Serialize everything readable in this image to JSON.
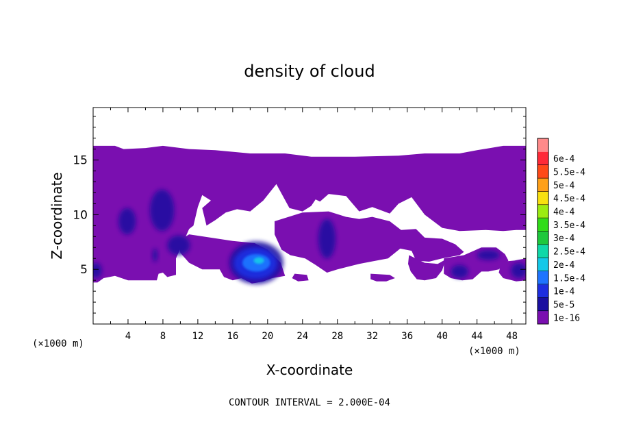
{
  "chart_data": {
    "type": "heatmap",
    "title": "density of cloud",
    "xlabel": "X-coordinate",
    "ylabel": "Z-coordinate",
    "x_unit": "(×1000 m)",
    "footer": "CONTOUR INTERVAL = 2.000E-04",
    "xlim": [
      0,
      49.6
    ],
    "ylim": [
      0,
      19.8
    ],
    "x_ticks": [
      4,
      8,
      12,
      16,
      20,
      24,
      28,
      32,
      36,
      40,
      44,
      48
    ],
    "x_tick_labels": [
      "4",
      "8",
      "12",
      "16",
      "20",
      "24",
      "28",
      "32",
      "36",
      "40",
      "44",
      "48"
    ],
    "y_ticks": [
      5,
      10,
      15
    ],
    "y_tick_labels": [
      "5",
      "10",
      "15"
    ],
    "colorbar": {
      "levels": [
        "1e-16",
        "5e-5",
        "1e-4",
        "1.5e-4",
        "2e-4",
        "2.5e-4",
        "3e-4",
        "3.5e-4",
        "4e-4",
        "4.5e-4",
        "5e-4",
        "5.5e-4",
        "6e-4"
      ],
      "colors": [
        "#7a0fb0",
        "#1a0fa0",
        "#1e2ee0",
        "#1f74ff",
        "#14c8e8",
        "#10d8a8",
        "#1ec83c",
        "#30dc18",
        "#9cec12",
        "#f8e010",
        "#ffa018",
        "#ff4a18",
        "#ff2a38",
        "#ff8a8a"
      ]
    },
    "cloud_layer": {
      "main_z_range": [
        4,
        16.3
      ],
      "region": [
        [
          0,
          16.3
        ],
        [
          2.5,
          16.3
        ],
        [
          3.5,
          16.0
        ],
        [
          6,
          16.1
        ],
        [
          8,
          16.3
        ],
        [
          11,
          16.0
        ],
        [
          14,
          15.9
        ],
        [
          18,
          15.6
        ],
        [
          22,
          15.6
        ],
        [
          25,
          15.3
        ],
        [
          30,
          15.3
        ],
        [
          35,
          15.4
        ],
        [
          38,
          15.6
        ],
        [
          42,
          15.6
        ],
        [
          44,
          15.9
        ],
        [
          45.5,
          16.1
        ],
        [
          47,
          16.3
        ],
        [
          49.6,
          16.3
        ],
        [
          49.6,
          8.6
        ],
        [
          48.5,
          8.6
        ],
        [
          47,
          8.5
        ],
        [
          45,
          8.6
        ],
        [
          42,
          8.5
        ],
        [
          40,
          8.8
        ],
        [
          38,
          10.0
        ],
        [
          36.5,
          11.6
        ],
        [
          35,
          11.0
        ],
        [
          34,
          10.1
        ],
        [
          32,
          10.7
        ],
        [
          30.5,
          10.3
        ],
        [
          29,
          11.7
        ],
        [
          27,
          11.9
        ],
        [
          26,
          11.2
        ],
        [
          25.5,
          11.4
        ],
        [
          25,
          10.8
        ],
        [
          24,
          10.3
        ],
        [
          22.5,
          10.6
        ],
        [
          21,
          12.8
        ],
        [
          19.5,
          11.3
        ],
        [
          18,
          10.3
        ],
        [
          16.5,
          10.5
        ],
        [
          15.2,
          10.2
        ],
        [
          14,
          9.5
        ],
        [
          13,
          9.0
        ],
        [
          12.5,
          10.6
        ],
        [
          13.5,
          11.3
        ],
        [
          12.5,
          11.8
        ],
        [
          12,
          10.7
        ],
        [
          11.5,
          9.0
        ],
        [
          11,
          8.7
        ],
        [
          9.5,
          6.0
        ],
        [
          9.5,
          4.5
        ],
        [
          8.5,
          4.3
        ],
        [
          8,
          4.7
        ],
        [
          7.5,
          4.6
        ],
        [
          7.3,
          4.0
        ],
        [
          4,
          4.0
        ],
        [
          2.5,
          4.4
        ],
        [
          1.2,
          4.2
        ],
        [
          0.5,
          3.8
        ],
        [
          0,
          3.8
        ]
      ],
      "lower_patches": [
        [
          [
            11,
            8.2
          ],
          [
            16,
            7.6
          ],
          [
            18.5,
            7.4
          ],
          [
            20,
            6.8
          ],
          [
            21.5,
            5.6
          ],
          [
            22,
            4.4
          ],
          [
            20.5,
            4.2
          ],
          [
            19.5,
            3.9
          ],
          [
            18.2,
            3.7
          ],
          [
            17,
            4.2
          ],
          [
            16,
            4.0
          ],
          [
            15,
            4.3
          ],
          [
            14.5,
            5.0
          ],
          [
            12.5,
            5.0
          ],
          [
            11,
            5.6
          ],
          [
            10,
            6.5
          ],
          [
            9.8,
            7.6
          ]
        ],
        [
          [
            20.8,
            9.4
          ],
          [
            24,
            10.2
          ],
          [
            27,
            10.3
          ],
          [
            29,
            9.8
          ],
          [
            30.5,
            9.6
          ],
          [
            32,
            9.8
          ],
          [
            34,
            9.4
          ],
          [
            35.3,
            8.6
          ],
          [
            37,
            8.7
          ],
          [
            38,
            7.9
          ],
          [
            40,
            7.8
          ],
          [
            41.5,
            7.3
          ],
          [
            42.5,
            6.6
          ],
          [
            42,
            6.3
          ],
          [
            40,
            6.0
          ],
          [
            38.5,
            5.7
          ],
          [
            37,
            5.8
          ],
          [
            36.5,
            6.7
          ],
          [
            35.2,
            6.9
          ],
          [
            33.8,
            6.0
          ],
          [
            30.5,
            5.5
          ],
          [
            28,
            5.0
          ],
          [
            26.8,
            4.7
          ],
          [
            25.5,
            5.4
          ],
          [
            24.3,
            6.0
          ],
          [
            22.6,
            6.3
          ],
          [
            21.6,
            6.8
          ],
          [
            20.8,
            8.2
          ]
        ],
        [
          [
            36.2,
            6.3
          ],
          [
            38,
            5.6
          ],
          [
            39.5,
            5.5
          ],
          [
            40.4,
            5.9
          ],
          [
            40,
            4.9
          ],
          [
            39.3,
            4.2
          ],
          [
            38,
            4.0
          ],
          [
            37.1,
            4.1
          ],
          [
            36.4,
            4.8
          ],
          [
            36.1,
            5.5
          ]
        ],
        [
          [
            40.2,
            6.0
          ],
          [
            42.5,
            6.3
          ],
          [
            44.5,
            7.0
          ],
          [
            46.2,
            7.0
          ],
          [
            47.2,
            6.4
          ],
          [
            47.6,
            5.8
          ],
          [
            46.5,
            5.0
          ],
          [
            45.3,
            4.8
          ],
          [
            44.5,
            4.8
          ],
          [
            43.5,
            4.1
          ],
          [
            42.3,
            4.0
          ],
          [
            41,
            4.2
          ],
          [
            40.2,
            4.6
          ]
        ],
        [
          [
            46.8,
            5.7
          ],
          [
            48.3,
            5.8
          ],
          [
            49.6,
            6.0
          ],
          [
            49.6,
            4.0
          ],
          [
            48.5,
            3.9
          ],
          [
            47,
            4.2
          ],
          [
            46.5,
            4.7
          ]
        ],
        [
          [
            23.1,
            4.6
          ],
          [
            24.5,
            4.5
          ],
          [
            24.7,
            4.0
          ],
          [
            23.5,
            3.9
          ],
          [
            22.8,
            4.2
          ]
        ],
        [
          [
            31.8,
            4.6
          ],
          [
            34,
            4.5
          ],
          [
            34.6,
            4.2
          ],
          [
            33.6,
            3.9
          ],
          [
            32.5,
            3.9
          ],
          [
            31.8,
            4.1
          ]
        ]
      ],
      "blobs": [
        {
          "level": 1,
          "x": 18.7,
          "z": 5.6,
          "rx": 3.1,
          "rz": 1.95
        },
        {
          "level": 2,
          "x": 18.6,
          "z": 5.55,
          "rx": 2.5,
          "rz": 1.45
        },
        {
          "level": 3,
          "x": 18.7,
          "z": 5.6,
          "rx": 1.6,
          "rz": 0.8
        },
        {
          "level": 4,
          "x": 19.0,
          "z": 5.8,
          "rx": 0.6,
          "rz": 0.3
        },
        {
          "level": 1,
          "x": 3.9,
          "z": 9.4,
          "rx": 1.0,
          "rz": 1.2
        },
        {
          "level": 1,
          "x": 7.9,
          "z": 10.4,
          "rx": 1.4,
          "rz": 1.9
        },
        {
          "level": 1,
          "x": 9.8,
          "z": 7.2,
          "rx": 1.3,
          "rz": 0.9
        },
        {
          "level": 1,
          "x": 26.8,
          "z": 7.8,
          "rx": 1.0,
          "rz": 1.8
        },
        {
          "level": 1,
          "x": 42.0,
          "z": 4.8,
          "rx": 1.0,
          "rz": 0.6
        },
        {
          "level": 1,
          "x": 45.3,
          "z": 6.3,
          "rx": 1.3,
          "rz": 0.45
        },
        {
          "level": 1,
          "x": 48.8,
          "z": 4.9,
          "rx": 0.9,
          "rz": 0.7
        },
        {
          "level": 1,
          "x": 0.3,
          "z": 4.9,
          "rx": 0.7,
          "rz": 0.7
        },
        {
          "level": 1,
          "x": 7.1,
          "z": 6.3,
          "rx": 0.3,
          "rz": 0.6
        }
      ]
    }
  }
}
